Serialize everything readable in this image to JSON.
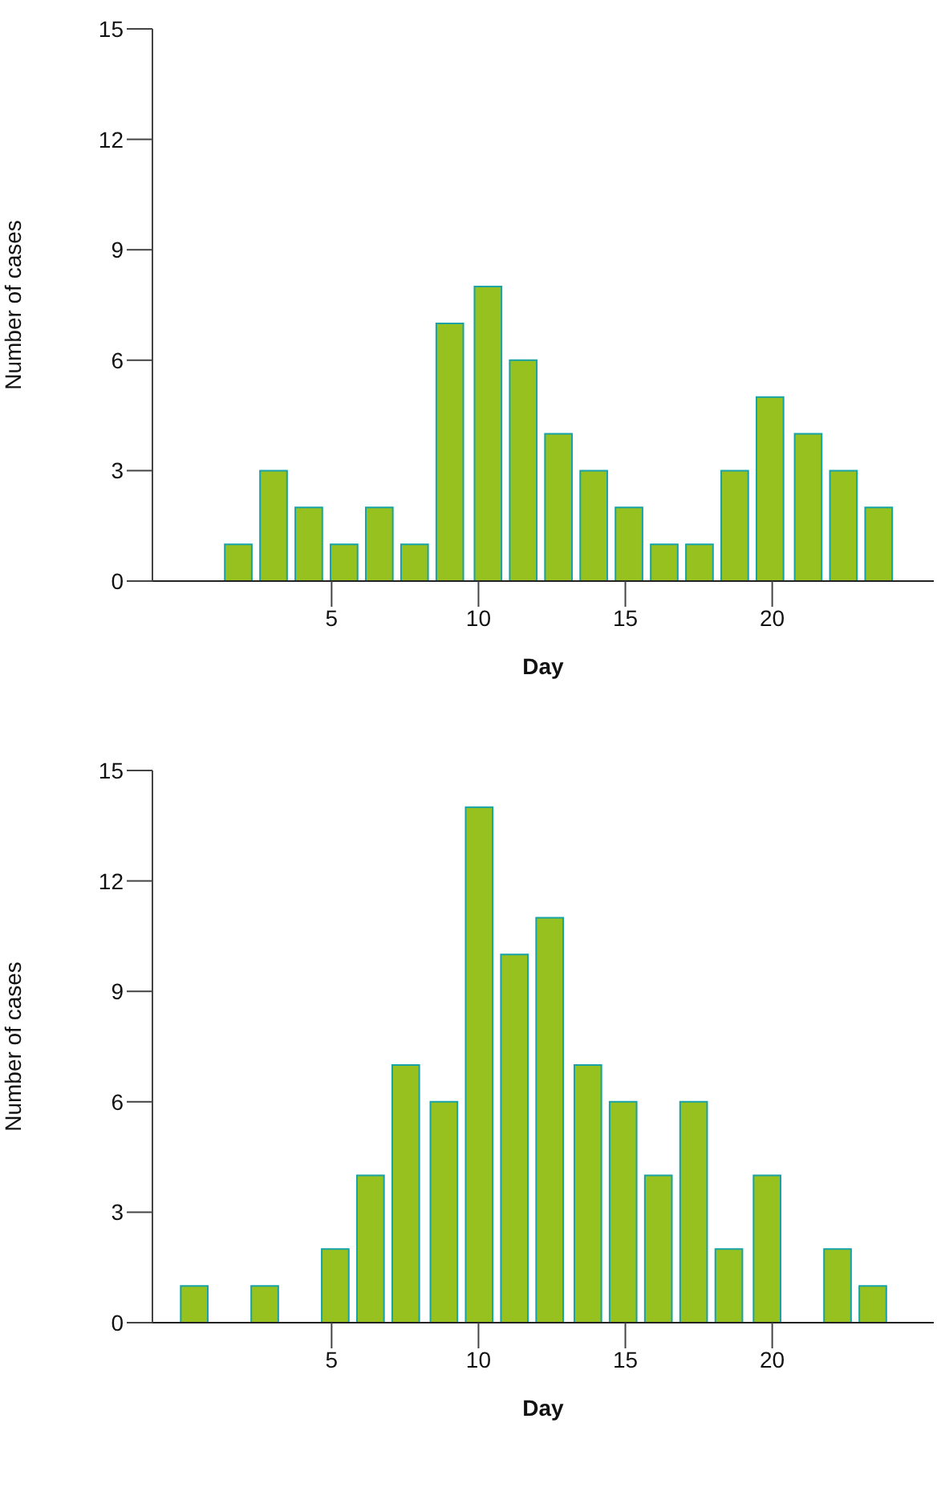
{
  "chart_data": [
    {
      "type": "bar",
      "xlabel": "Day",
      "ylabel": "Number of cases",
      "x": [
        1.8,
        3.0,
        4.2,
        5.4,
        6.6,
        7.8,
        9.0,
        10.3,
        11.5,
        12.7,
        13.9,
        15.1,
        16.3,
        17.5,
        18.7,
        19.9,
        21.2,
        22.4,
        23.6
      ],
      "values": [
        1,
        3,
        2,
        1,
        2,
        1,
        7,
        8,
        6,
        4,
        3,
        2,
        1,
        1,
        3,
        5,
        4,
        3,
        2
      ],
      "color": "#96c11f",
      "xlim": [
        -1.1,
        25.5
      ],
      "xticks": [
        5,
        10,
        15,
        20
      ],
      "ylim": [
        0,
        15
      ],
      "yticks": [
        0,
        3,
        6,
        9,
        12,
        15
      ]
    },
    {
      "type": "bar",
      "xlabel": "Day",
      "ylabel": "Number of cases",
      "x": [
        0.3,
        2.7,
        5.1,
        6.3,
        7.5,
        8.8,
        10.0,
        11.2,
        12.4,
        13.7,
        14.9,
        16.1,
        17.3,
        18.5,
        19.8,
        22.2,
        23.4
      ],
      "values": [
        1,
        1,
        2,
        4,
        7,
        6,
        14,
        10,
        11,
        7,
        6,
        4,
        6,
        2,
        4,
        2,
        1
      ],
      "color": "#96c11f",
      "xlim": [
        -1.1,
        25.5
      ],
      "xticks": [
        5,
        10,
        15,
        20
      ],
      "ylim": [
        0,
        15
      ],
      "yticks": [
        0,
        3,
        6,
        9,
        12,
        15
      ]
    }
  ]
}
